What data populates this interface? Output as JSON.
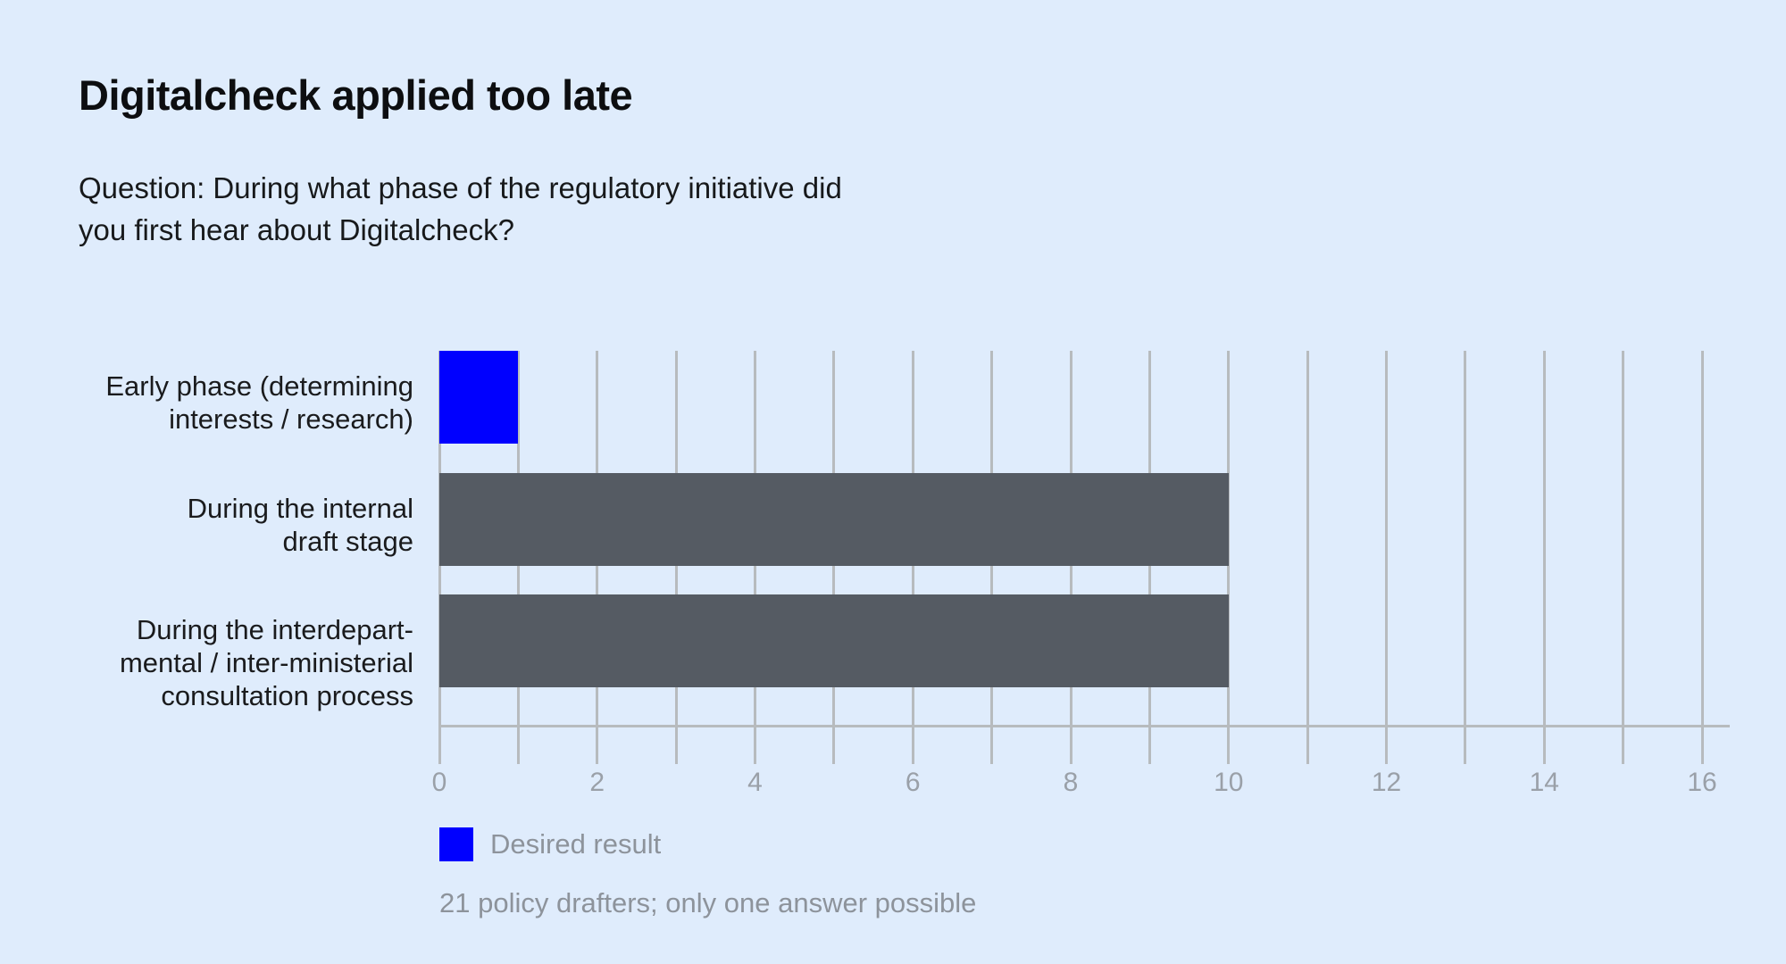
{
  "chart_data": {
    "type": "bar",
    "orientation": "horizontal",
    "title": "Digitalcheck applied too late",
    "subtitle": "Question: During what phase of the regulatory initiative did you first hear about Digitalcheck?",
    "subtitle_lines": [
      "Question: During what phase of the regulatory initiative did",
      "you first hear about Digitalcheck?"
    ],
    "categories": [
      "Early phase (determining interests / research)",
      "During the internal draft stage",
      "During the interdepartmental / inter-ministerial consultation process"
    ],
    "category_label_lines": [
      [
        "Early phase (determining",
        "interests / research)"
      ],
      [
        "During the internal",
        "draft stage"
      ],
      [
        "During the interdepart-",
        "mental / inter-ministerial",
        "consultation process"
      ]
    ],
    "values": [
      1,
      10,
      10
    ],
    "bar_colors": [
      "#0000ff",
      "#555b63",
      "#555b63"
    ],
    "xlabel": "",
    "ylabel": "",
    "xlim": [
      0,
      16
    ],
    "x_ticks": [
      0,
      2,
      4,
      6,
      8,
      10,
      12,
      14,
      16
    ],
    "gridline_interval": 1,
    "grid": true,
    "legend": [
      {
        "label": "Desired result",
        "color": "#0000ff"
      }
    ],
    "legend_position": "bottom-left",
    "footnote": "21 policy drafters; only one answer possible"
  },
  "colors": {
    "background": "#dfecfc",
    "gridline": "#b7bbbe",
    "axis_line": "#b7bbbe",
    "tick_text": "#9aa0a8",
    "category_text": "#1a1b1d",
    "muted_text": "#8d939b",
    "accent_blue": "#0000ff",
    "bar_gray": "#555b63"
  }
}
